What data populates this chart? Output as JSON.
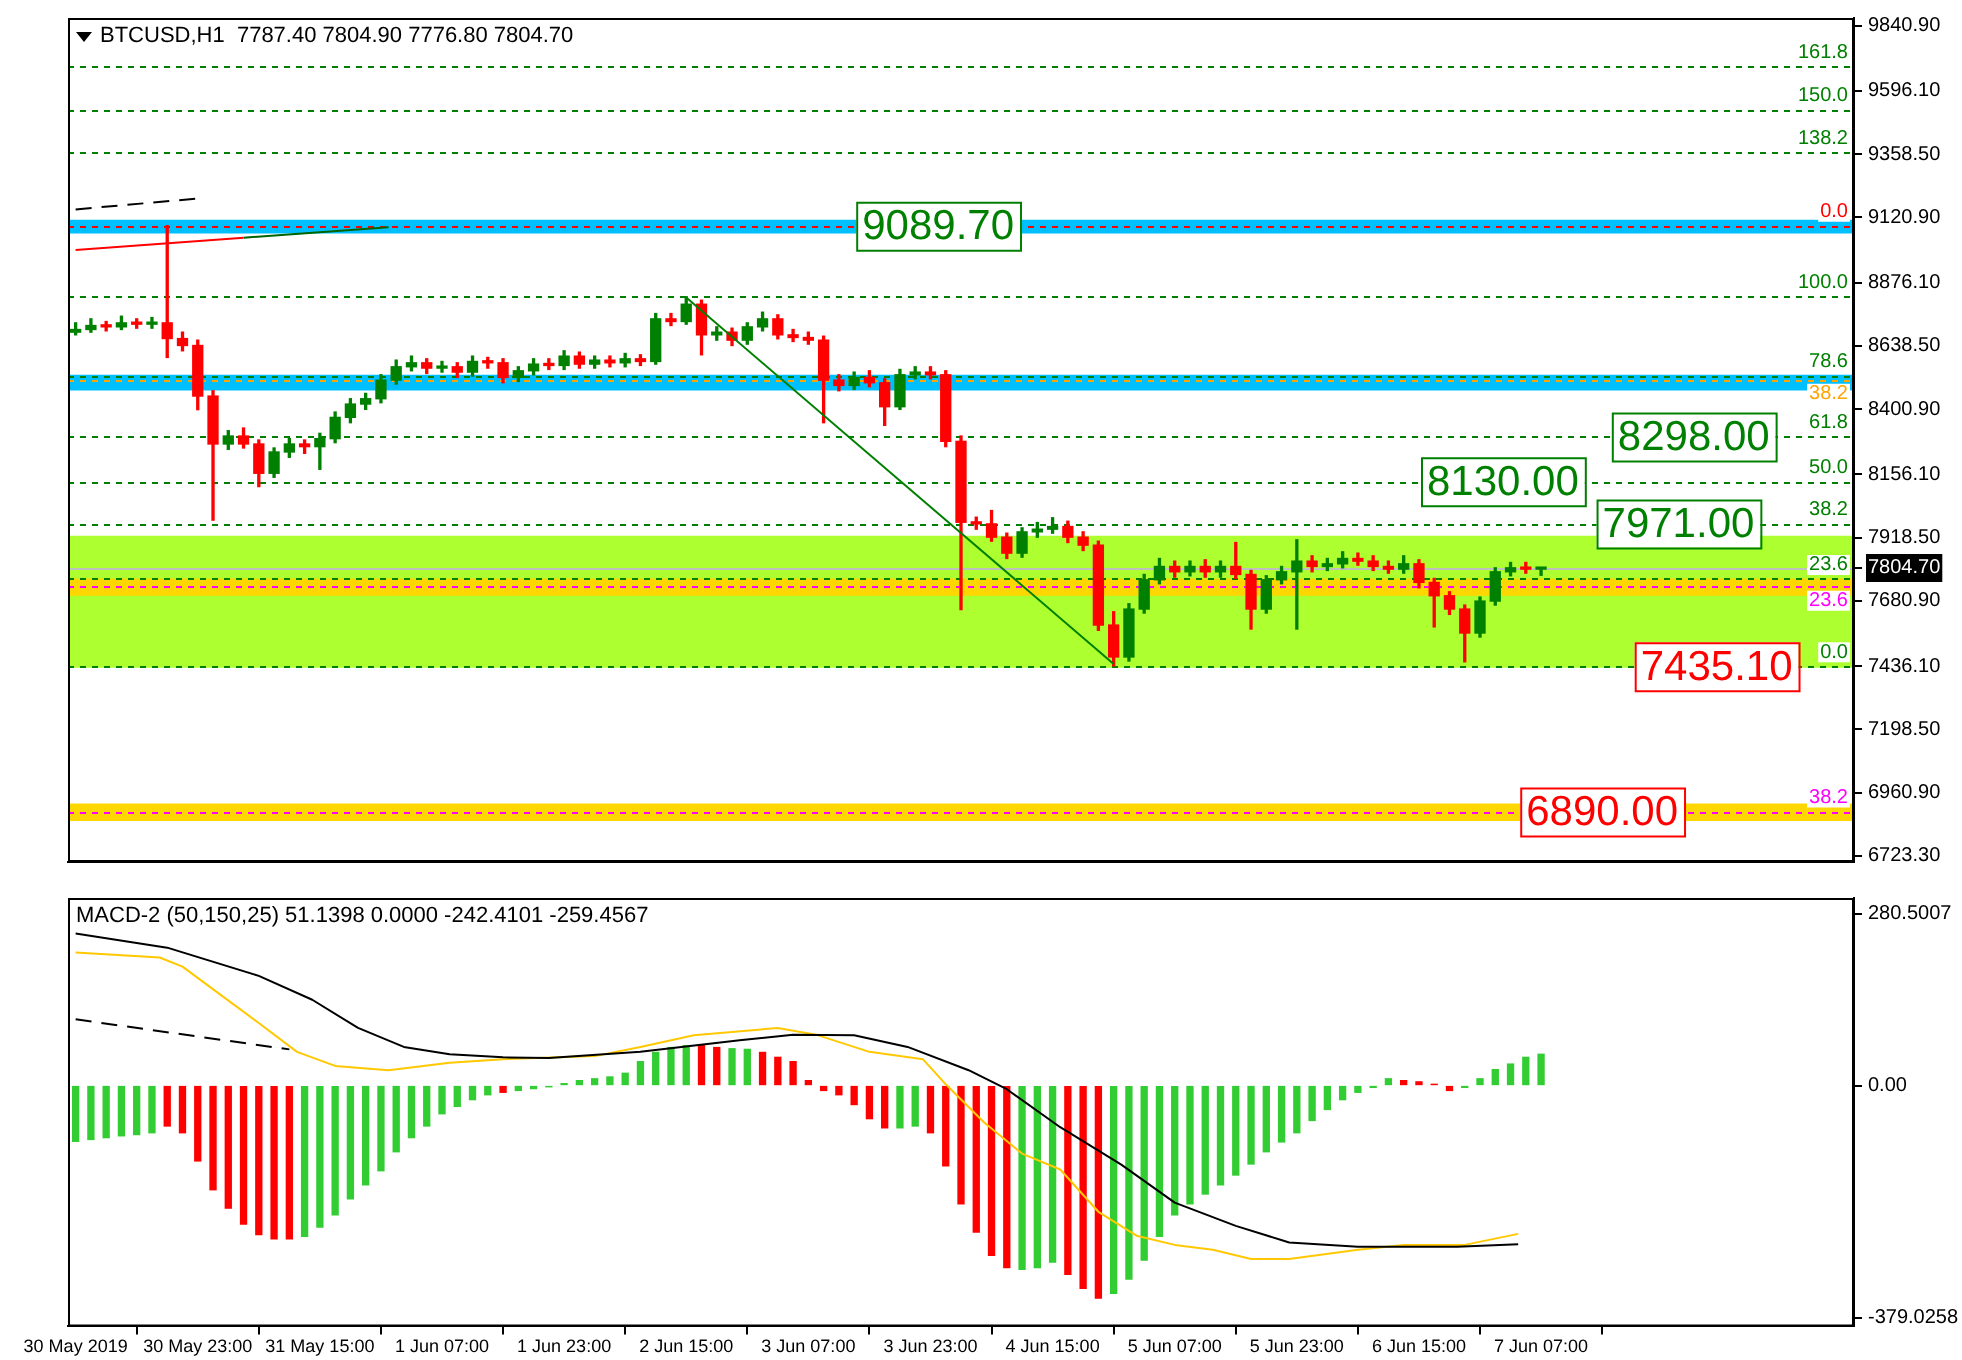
{
  "chart_data": [
    {
      "type": "candlestick",
      "title": "BTCUSD,H1  7787.40 7804.90 7776.80 7804.70",
      "tick_labels": "y",
      "x": [
        "2019-05-30T07:00",
        "2019-05-30T09:00",
        "2019-05-30T11:00",
        "2019-05-30T13:00",
        "2019-05-30T15:00",
        "2019-05-30T17:00",
        "2019-05-30T19:00",
        "2019-05-30T21:00",
        "2019-05-30T23:00",
        "2019-05-31T01:00",
        "2019-05-31T03:00",
        "2019-05-31T05:00",
        "2019-05-31T07:00",
        "2019-05-31T09:00",
        "2019-05-31T11:00",
        "2019-05-31T13:00",
        "2019-05-31T15:00",
        "2019-05-31T17:00",
        "2019-05-31T19:00",
        "2019-05-31T21:00",
        "2019-05-31T23:00",
        "2019-06-01T01:00",
        "2019-06-01T03:00",
        "2019-06-01T05:00",
        "2019-06-01T07:00",
        "2019-06-01T09:00",
        "2019-06-01T11:00",
        "2019-06-01T13:00",
        "2019-06-01T15:00",
        "2019-06-01T17:00",
        "2019-06-01T19:00",
        "2019-06-01T21:00",
        "2019-06-01T23:00",
        "2019-06-02T01:00",
        "2019-06-02T03:00",
        "2019-06-02T05:00",
        "2019-06-02T07:00",
        "2019-06-02T09:00",
        "2019-06-02T11:00",
        "2019-06-02T13:00",
        "2019-06-02T15:00",
        "2019-06-02T17:00",
        "2019-06-02T19:00",
        "2019-06-02T21:00",
        "2019-06-02T23:00",
        "2019-06-03T01:00",
        "2019-06-03T03:00",
        "2019-06-03T05:00",
        "2019-06-03T07:00",
        "2019-06-03T09:00",
        "2019-06-03T11:00",
        "2019-06-03T13:00",
        "2019-06-03T15:00",
        "2019-06-03T17:00",
        "2019-06-03T19:00",
        "2019-06-03T21:00",
        "2019-06-03T23:00",
        "2019-06-04T01:00",
        "2019-06-04T03:00",
        "2019-06-04T05:00",
        "2019-06-04T07:00",
        "2019-06-04T09:00",
        "2019-06-04T11:00",
        "2019-06-04T13:00",
        "2019-06-04T15:00",
        "2019-06-04T17:00",
        "2019-06-04T19:00",
        "2019-06-04T21:00",
        "2019-06-04T23:00",
        "2019-06-05T01:00",
        "2019-06-05T03:00",
        "2019-06-05T05:00",
        "2019-06-05T07:00",
        "2019-06-05T09:00",
        "2019-06-05T11:00",
        "2019-06-05T13:00",
        "2019-06-05T15:00",
        "2019-06-05T17:00",
        "2019-06-05T19:00",
        "2019-06-05T21:00",
        "2019-06-05T23:00",
        "2019-06-06T01:00",
        "2019-06-06T03:00",
        "2019-06-06T05:00",
        "2019-06-06T07:00",
        "2019-06-06T09:00",
        "2019-06-06T11:00",
        "2019-06-06T13:00",
        "2019-06-06T15:00",
        "2019-06-06T17:00",
        "2019-06-06T19:00",
        "2019-06-06T21:00",
        "2019-06-06T23:00",
        "2019-06-07T01:00",
        "2019-06-07T03:00",
        "2019-06-07T05:00",
        "2019-06-07T07:00"
      ],
      "ohlc": [
        [
          8690,
          8725,
          8680,
          8700
        ],
        [
          8700,
          8740,
          8690,
          8715
        ],
        [
          8715,
          8730,
          8695,
          8710
        ],
        [
          8710,
          8750,
          8700,
          8725
        ],
        [
          8725,
          8740,
          8705,
          8720
        ],
        [
          8720,
          8745,
          8705,
          8725
        ],
        [
          8725,
          9090,
          8595,
          8666
        ],
        [
          8666,
          8690,
          8620,
          8640
        ],
        [
          8640,
          8660,
          8399,
          8450
        ],
        [
          8450,
          8470,
          7984,
          8270
        ],
        [
          8270,
          8320,
          8250,
          8300
        ],
        [
          8300,
          8330,
          8255,
          8270
        ],
        [
          8270,
          8285,
          8110,
          8160
        ],
        [
          8160,
          8255,
          8145,
          8240
        ],
        [
          8240,
          8290,
          8220,
          8270
        ],
        [
          8270,
          8285,
          8235,
          8260
        ],
        [
          8260,
          8310,
          8175,
          8290
        ],
        [
          8290,
          8390,
          8275,
          8370
        ],
        [
          8370,
          8440,
          8350,
          8420
        ],
        [
          8420,
          8460,
          8400,
          8440
        ],
        [
          8440,
          8530,
          8425,
          8510
        ],
        [
          8510,
          8585,
          8495,
          8560
        ],
        [
          8560,
          8600,
          8545,
          8575
        ],
        [
          8575,
          8590,
          8535,
          8555
        ],
        [
          8555,
          8580,
          8540,
          8560
        ],
        [
          8560,
          8575,
          8520,
          8540
        ],
        [
          8540,
          8600,
          8525,
          8580
        ],
        [
          8580,
          8595,
          8555,
          8575
        ],
        [
          8575,
          8590,
          8500,
          8520
        ],
        [
          8520,
          8560,
          8505,
          8545
        ],
        [
          8545,
          8590,
          8530,
          8570
        ],
        [
          8570,
          8590,
          8550,
          8565
        ],
        [
          8565,
          8620,
          8550,
          8600
        ],
        [
          8600,
          8615,
          8555,
          8570
        ],
        [
          8570,
          8600,
          8555,
          8585
        ],
        [
          8585,
          8600,
          8560,
          8575
        ],
        [
          8575,
          8610,
          8560,
          8590
        ],
        [
          8590,
          8605,
          8565,
          8580
        ],
        [
          8580,
          8760,
          8570,
          8740
        ],
        [
          8740,
          8760,
          8715,
          8730
        ],
        [
          8730,
          8823,
          8720,
          8795
        ],
        [
          8795,
          8810,
          8605,
          8680
        ],
        [
          8680,
          8710,
          8660,
          8690
        ],
        [
          8690,
          8705,
          8640,
          8660
        ],
        [
          8660,
          8725,
          8645,
          8710
        ],
        [
          8710,
          8765,
          8695,
          8740
        ],
        [
          8740,
          8755,
          8665,
          8680
        ],
        [
          8680,
          8700,
          8655,
          8670
        ],
        [
          8670,
          8690,
          8645,
          8660
        ],
        [
          8660,
          8675,
          8350,
          8510
        ],
        [
          8510,
          8530,
          8470,
          8490
        ],
        [
          8490,
          8540,
          8475,
          8520
        ],
        [
          8520,
          8545,
          8485,
          8500
        ],
        [
          8500,
          8515,
          8340,
          8410
        ],
        [
          8410,
          8550,
          8400,
          8530
        ],
        [
          8530,
          8560,
          8515,
          8540
        ],
        [
          8540,
          8560,
          8515,
          8530
        ],
        [
          8530,
          8545,
          8260,
          8280
        ],
        [
          8280,
          8300,
          7648,
          7976
        ],
        [
          7976,
          7995,
          7950,
          7970
        ],
        [
          7970,
          8020,
          7905,
          7920
        ],
        [
          7920,
          7935,
          7840,
          7860
        ],
        [
          7860,
          7955,
          7845,
          7940
        ],
        [
          7940,
          7975,
          7920,
          7950
        ],
        [
          7950,
          7993,
          7935,
          7960
        ],
        [
          7960,
          7980,
          7900,
          7920
        ],
        [
          7920,
          7940,
          7870,
          7890
        ],
        [
          7890,
          7905,
          7570,
          7590
        ],
        [
          7590,
          7640,
          7437,
          7470
        ],
        [
          7470,
          7670,
          7455,
          7650
        ],
        [
          7650,
          7780,
          7635,
          7760
        ],
        [
          7760,
          7840,
          7745,
          7810
        ],
        [
          7810,
          7830,
          7770,
          7790
        ],
        [
          7790,
          7830,
          7775,
          7810
        ],
        [
          7810,
          7835,
          7770,
          7790
        ],
        [
          7790,
          7830,
          7770,
          7810
        ],
        [
          7810,
          7900,
          7765,
          7780
        ],
        [
          7780,
          7795,
          7575,
          7650
        ],
        [
          7650,
          7775,
          7635,
          7760
        ],
        [
          7760,
          7810,
          7745,
          7790
        ],
        [
          7790,
          7910,
          7575,
          7830
        ],
        [
          7830,
          7850,
          7790,
          7810
        ],
        [
          7810,
          7840,
          7795,
          7820
        ],
        [
          7820,
          7865,
          7805,
          7840
        ],
        [
          7840,
          7860,
          7815,
          7830
        ],
        [
          7830,
          7850,
          7795,
          7810
        ],
        [
          7810,
          7830,
          7785,
          7800
        ],
        [
          7800,
          7850,
          7785,
          7820
        ],
        [
          7820,
          7835,
          7730,
          7750
        ],
        [
          7750,
          7765,
          7583,
          7700
        ],
        [
          7700,
          7715,
          7630,
          7650
        ],
        [
          7650,
          7665,
          7452,
          7560
        ],
        [
          7560,
          7695,
          7545,
          7680
        ],
        [
          7680,
          7805,
          7665,
          7790
        ],
        [
          7790,
          7825,
          7775,
          7805
        ],
        [
          7805,
          7825,
          7785,
          7800
        ],
        [
          7800,
          7805,
          7777,
          7804.7
        ]
      ],
      "series": [
        {
          "type": "line",
          "color": "#ff0000",
          "x": [
            "2019-05-30T07:00",
            "2019-05-31T05:00"
          ],
          "values": [
            8999,
            9045
          ]
        },
        {
          "type": "line",
          "color": "#006400",
          "x": [
            "2019-05-31T05:00",
            "2019-06-01T00:00"
          ],
          "values": [
            9045,
            9084
          ]
        },
        {
          "type": "line",
          "color": "#000000",
          "line_style": "dashed",
          "x": [
            "2019-05-30T07:00",
            "2019-05-30T23:00"
          ],
          "values": [
            9151,
            9192
          ]
        },
        {
          "type": "line",
          "color": "#008000",
          "x": [
            "2019-06-02T15:00",
            "2019-06-04T23:00"
          ],
          "values": [
            8820,
            7444
          ]
        }
      ],
      "xlim": [
        "2019-05-30T06:00",
        "2019-06-09T00:00"
      ],
      "ylim": [
        6700,
        9870
      ],
      "yticks": [
        {
          "value": 9840.9,
          "label": "9840.90"
        },
        {
          "value": 9596.1,
          "label": "9596.10"
        },
        {
          "value": 9358.5,
          "label": "9358.50"
        },
        {
          "value": 9120.9,
          "label": "9120.90"
        },
        {
          "value": 8876.1,
          "label": "8876.10"
        },
        {
          "value": 8638.5,
          "label": "8638.50"
        },
        {
          "value": 8400.9,
          "label": "8400.90"
        },
        {
          "value": 8156.1,
          "label": "8156.10"
        },
        {
          "value": 7918.5,
          "label": "7918.50"
        },
        {
          "value": 7804.7,
          "label": "7804.70"
        },
        {
          "value": 7680.9,
          "label": "7680.90"
        },
        {
          "value": 7436.1,
          "label": "7436.10"
        },
        {
          "value": 7198.5,
          "label": "7198.50"
        },
        {
          "value": 6960.9,
          "label": "6960.90"
        },
        {
          "value": 6723.3,
          "label": "6723.30"
        }
      ],
      "bands": [
        {
          "axis": "y",
          "from": 7430,
          "to": 7925,
          "color": "#adff2f"
        },
        {
          "axis": "y",
          "from": 9061,
          "to": 9112,
          "color": "#00bfff"
        },
        {
          "axis": "y",
          "from": 8471,
          "to": 8530,
          "color": "#00bfff"
        },
        {
          "axis": "y",
          "from": 7700,
          "to": 7765,
          "color": "#ffd700"
        },
        {
          "axis": "y",
          "from": 6854,
          "to": 6920,
          "color": "#ffd700"
        }
      ],
      "ref_lines": [
        {
          "axis": "y",
          "value": 7804.7,
          "color": "#c0c0c0"
        },
        {
          "axis": "y",
          "value": 9688,
          "color": "#008000",
          "line_style": "dashed"
        },
        {
          "axis": "y",
          "value": 9525,
          "color": "#008000",
          "line_style": "dashed"
        },
        {
          "axis": "y",
          "value": 9365,
          "color": "#008000",
          "line_style": "dashed"
        },
        {
          "axis": "y",
          "value": 8825,
          "color": "#008000",
          "line_style": "dashed"
        },
        {
          "axis": "y",
          "value": 8527,
          "color": "#008000",
          "line_style": "dashed"
        },
        {
          "axis": "y",
          "value": 8298,
          "color": "#008000",
          "line_style": "dashed"
        },
        {
          "axis": "y",
          "value": 8130,
          "color": "#008000",
          "line_style": "dashed"
        },
        {
          "axis": "y",
          "value": 7971,
          "color": "#008000",
          "line_style": "dashed"
        },
        {
          "axis": "y",
          "value": 7763,
          "color": "#008000",
          "line_style": "dashed"
        },
        {
          "axis": "y",
          "value": 7435.1,
          "color": "#008000",
          "line_style": "dashed"
        },
        {
          "axis": "y",
          "value": 9089.7,
          "color": "#ff0000",
          "line_style": "dashed"
        },
        {
          "axis": "y",
          "value": 8511,
          "color": "#ffa500",
          "line_style": "dashed"
        },
        {
          "axis": "y",
          "value": 7734,
          "color": "#ff00ff",
          "line_style": "dashed"
        },
        {
          "axis": "y",
          "value": 6890,
          "color": "#ff00ff",
          "line_style": "dashed"
        }
      ],
      "annotations": [
        {
          "text": "161.8",
          "x": "2019-06-09T00:00",
          "y": 9688
        },
        {
          "text": "150.0",
          "x": "2019-06-09T00:00",
          "y": 9525
        },
        {
          "text": "138.2",
          "x": "2019-06-09T00:00",
          "y": 9365
        },
        {
          "text": "100.0",
          "x": "2019-06-09T00:00",
          "y": 8825
        },
        {
          "text": "78.6",
          "x": "2019-06-09T00:00",
          "y": 8527
        },
        {
          "text": "61.8",
          "x": "2019-06-09T00:00",
          "y": 8298
        },
        {
          "text": "50.0",
          "x": "2019-06-09T00:00",
          "y": 8130
        },
        {
          "text": "38.2",
          "x": "2019-06-09T00:00",
          "y": 7971
        },
        {
          "text": "23.6",
          "x": "2019-06-09T00:00",
          "y": 7763
        },
        {
          "text": "0.0",
          "x": "2019-06-09T00:00",
          "y": 7435.1
        },
        {
          "text": "0.0",
          "x": "2019-06-09T00:00",
          "y": 9089.7
        },
        {
          "text": "38.2",
          "x": "2019-06-09T00:00",
          "y": 8511
        },
        {
          "text": "23.6",
          "x": "2019-06-09T00:00",
          "y": 7734
        },
        {
          "text": "38.2",
          "x": "2019-06-09T00:00",
          "y": 6890
        },
        {
          "text": "9089.70",
          "x": "2019-06-04T00:00",
          "y": 9089.7
        },
        {
          "text": "8298.00",
          "x": "2019-06-08T03:00",
          "y": 8298
        },
        {
          "text": "8130.00",
          "x": "2019-06-07T02:00",
          "y": 8130
        },
        {
          "text": "7971.00",
          "x": "2019-06-08T01:00",
          "y": 7971
        },
        {
          "text": "7435.10",
          "x": "2019-06-08T06:00",
          "y": 7435.1
        },
        {
          "text": "6890.00",
          "x": "2019-06-07T15:00",
          "y": 6890
        }
      ]
    },
    {
      "type": "bar",
      "title": "MACD-2 (50,150,25) 51.1398 0.0000 -242.4101 -259.4567",
      "x": [
        "2019-05-30T07:00",
        "2019-05-30T09:00",
        "2019-05-30T11:00",
        "2019-05-30T13:00",
        "2019-05-30T15:00",
        "2019-05-30T17:00",
        "2019-05-30T19:00",
        "2019-05-30T21:00",
        "2019-05-30T23:00",
        "2019-05-31T01:00",
        "2019-05-31T03:00",
        "2019-05-31T05:00",
        "2019-05-31T07:00",
        "2019-05-31T09:00",
        "2019-05-31T11:00",
        "2019-05-31T13:00",
        "2019-05-31T15:00",
        "2019-05-31T17:00",
        "2019-05-31T19:00",
        "2019-05-31T21:00",
        "2019-05-31T23:00",
        "2019-06-01T01:00",
        "2019-06-01T03:00",
        "2019-06-01T05:00",
        "2019-06-01T07:00",
        "2019-06-01T09:00",
        "2019-06-01T11:00",
        "2019-06-01T13:00",
        "2019-06-01T15:00",
        "2019-06-01T17:00",
        "2019-06-01T19:00",
        "2019-06-01T21:00",
        "2019-06-01T23:00",
        "2019-06-02T01:00",
        "2019-06-02T03:00",
        "2019-06-02T05:00",
        "2019-06-02T07:00",
        "2019-06-02T09:00",
        "2019-06-02T11:00",
        "2019-06-02T13:00",
        "2019-06-02T15:00",
        "2019-06-02T17:00",
        "2019-06-02T19:00",
        "2019-06-02T21:00",
        "2019-06-02T23:00",
        "2019-06-03T01:00",
        "2019-06-03T03:00",
        "2019-06-03T05:00",
        "2019-06-03T07:00",
        "2019-06-03T09:00",
        "2019-06-03T11:00",
        "2019-06-03T13:00",
        "2019-06-03T15:00",
        "2019-06-03T17:00",
        "2019-06-03T19:00",
        "2019-06-03T21:00",
        "2019-06-03T23:00",
        "2019-06-04T01:00",
        "2019-06-04T03:00",
        "2019-06-04T05:00",
        "2019-06-04T07:00",
        "2019-06-04T09:00",
        "2019-06-04T11:00",
        "2019-06-04T13:00",
        "2019-06-04T15:00",
        "2019-06-04T17:00",
        "2019-06-04T19:00",
        "2019-06-04T21:00",
        "2019-06-04T23:00",
        "2019-06-05T01:00",
        "2019-06-05T03:00",
        "2019-06-05T05:00",
        "2019-06-05T07:00",
        "2019-06-05T09:00",
        "2019-06-05T11:00",
        "2019-06-05T13:00",
        "2019-06-05T15:00",
        "2019-06-05T17:00",
        "2019-06-05T19:00",
        "2019-06-05T21:00",
        "2019-06-05T23:00",
        "2019-06-06T01:00",
        "2019-06-06T03:00",
        "2019-06-06T05:00",
        "2019-06-06T07:00",
        "2019-06-06T09:00",
        "2019-06-06T11:00",
        "2019-06-06T13:00",
        "2019-06-06T15:00",
        "2019-06-06T17:00",
        "2019-06-06T19:00",
        "2019-06-06T21:00",
        "2019-06-06T23:00",
        "2019-06-07T01:00",
        "2019-06-07T03:00",
        "2019-06-07T05:00",
        "2019-06-07T07:00"
      ],
      "series": [
        {
          "values": [
            -91,
            -88,
            -85,
            -82,
            -80,
            -77,
            -66,
            -77,
            -123,
            -170,
            -200,
            -226,
            -243,
            -250,
            -250,
            -246,
            -231,
            -211,
            -185,
            -162,
            -139,
            -108,
            -85,
            -66,
            -46,
            -34,
            -23,
            -15,
            -11,
            -8,
            -5,
            -2,
            3,
            8,
            11,
            14,
            20,
            39,
            54,
            62,
            65,
            65,
            62,
            60,
            59,
            54,
            46,
            39,
            8,
            -8,
            -15,
            -31,
            -54,
            -69,
            -69,
            -66,
            -77,
            -131,
            -193,
            -239,
            -277,
            -297,
            -300,
            -297,
            -288,
            -308,
            -331,
            -347,
            -339,
            -316,
            -285,
            -246,
            -211,
            -193,
            -177,
            -162,
            -146,
            -128,
            -108,
            -92,
            -77,
            -57,
            -39,
            -23,
            -11,
            -3,
            11,
            8,
            6,
            2,
            -8,
            -3,
            11,
            26,
            35,
            46,
            51
          ],
          "colors": [
            "#32cd32",
            "#32cd32",
            "#32cd32",
            "#32cd32",
            "#32cd32",
            "#32cd32",
            "#ff0000",
            "#ff0000",
            "#ff0000",
            "#ff0000",
            "#ff0000",
            "#ff0000",
            "#ff0000",
            "#ff0000",
            "#ff0000",
            "#32cd32",
            "#32cd32",
            "#32cd32",
            "#32cd32",
            "#32cd32",
            "#32cd32",
            "#32cd32",
            "#32cd32",
            "#32cd32",
            "#32cd32",
            "#32cd32",
            "#32cd32",
            "#32cd32",
            "#ff0000",
            "#32cd32",
            "#32cd32",
            "#32cd32",
            "#32cd32",
            "#32cd32",
            "#32cd32",
            "#32cd32",
            "#32cd32",
            "#32cd32",
            "#32cd32",
            "#32cd32",
            "#32cd32",
            "#ff0000",
            "#ff0000",
            "#32cd32",
            "#32cd32",
            "#ff0000",
            "#ff0000",
            "#ff0000",
            "#ff0000",
            "#ff0000",
            "#ff0000",
            "#ff0000",
            "#ff0000",
            "#ff0000",
            "#32cd32",
            "#32cd32",
            "#ff0000",
            "#ff0000",
            "#ff0000",
            "#ff0000",
            "#ff0000",
            "#ff0000",
            "#32cd32",
            "#32cd32",
            "#32cd32",
            "#ff0000",
            "#ff0000",
            "#ff0000",
            "#32cd32",
            "#32cd32",
            "#32cd32",
            "#32cd32",
            "#32cd32",
            "#32cd32",
            "#32cd32",
            "#32cd32",
            "#32cd32",
            "#32cd32",
            "#32cd32",
            "#32cd32",
            "#32cd32",
            "#32cd32",
            "#32cd32",
            "#32cd32",
            "#32cd32",
            "#32cd32",
            "#32cd32",
            "#ff0000",
            "#ff0000",
            "#ff0000",
            "#ff0000",
            "#32cd32",
            "#32cd32",
            "#32cd32",
            "#32cd32",
            "#32cd32",
            "#32cd32"
          ]
        },
        {
          "type": "line",
          "color": "#000000",
          "x": [
            "2019-05-30T07:00",
            "2019-05-30T19:00",
            "2019-05-31T07:00",
            "2019-05-31T14:00",
            "2019-05-31T20:00",
            "2019-06-01T02:00",
            "2019-06-01T08:00",
            "2019-06-01T15:00",
            "2019-06-01T21:00",
            "2019-06-02T09:00",
            "2019-06-02T22:00",
            "2019-06-03T05:00",
            "2019-06-03T13:00",
            "2019-06-03T20:00",
            "2019-06-04T04:00",
            "2019-06-04T09:00",
            "2019-06-04T16:00",
            "2019-06-05T00:00",
            "2019-06-05T07:00",
            "2019-06-05T15:00",
            "2019-06-05T22:00",
            "2019-06-06T07:00",
            "2019-06-06T20:00",
            "2019-06-07T04:00"
          ],
          "values": [
            248,
            225,
            179,
            140,
            94,
            63,
            51,
            46,
            45,
            55,
            74,
            83,
            82,
            63,
            25,
            -6,
            -68,
            -129,
            -191,
            -229,
            -256,
            -263,
            -263,
            -259
          ]
        },
        {
          "type": "line",
          "color": "#ffc800",
          "x": [
            "2019-05-30T07:00",
            "2019-05-30T18:00",
            "2019-05-30T21:00",
            "2019-05-31T02:00",
            "2019-05-31T07:00",
            "2019-05-31T12:00",
            "2019-05-31T17:00",
            "2019-06-01T00:00",
            "2019-06-01T08:00",
            "2019-06-01T15:00",
            "2019-06-02T03:00",
            "2019-06-02T09:00",
            "2019-06-02T16:00",
            "2019-06-03T03:00",
            "2019-06-03T08:00",
            "2019-06-03T15:00",
            "2019-06-03T22:00",
            "2019-06-04T01:00",
            "2019-06-04T06:00",
            "2019-06-04T11:00",
            "2019-06-04T16:00",
            "2019-06-04T21:00",
            "2019-06-05T02:00",
            "2019-06-05T07:00",
            "2019-06-05T12:00",
            "2019-06-05T17:00",
            "2019-06-05T22:00",
            "2019-06-06T07:00",
            "2019-06-06T13:00",
            "2019-06-06T21:00",
            "2019-06-07T04:00"
          ],
          "values": [
            217,
            209,
            194,
            148,
            102,
            55,
            32,
            25,
            37,
            43,
            48,
            63,
            82,
            94,
            83,
            55,
            43,
            2,
            -60,
            -111,
            -137,
            -206,
            -245,
            -260,
            -268,
            -283,
            -283,
            -268,
            -260,
            -260,
            -242
          ]
        },
        {
          "type": "line",
          "color": "#000000",
          "line_style": "dashed",
          "x": [
            "2019-05-30T07:00",
            "2019-05-31T11:00"
          ],
          "values": [
            108,
            59
          ]
        }
      ],
      "xlim": [
        "2019-05-30T06:00",
        "2019-06-09T00:00"
      ],
      "xticks": [
        {
          "value": "2019-05-30T07:00",
          "label": "30 May 2019"
        },
        {
          "value": "2019-05-30T23:00",
          "label": "30 May 23:00"
        },
        {
          "value": "2019-05-31T15:00",
          "label": "31 May 15:00"
        },
        {
          "value": "2019-06-01T07:00",
          "label": "1 Jun 07:00"
        },
        {
          "value": "2019-06-01T23:00",
          "label": "1 Jun 23:00"
        },
        {
          "value": "2019-06-02T15:00",
          "label": "2 Jun 15:00"
        },
        {
          "value": "2019-06-03T07:00",
          "label": "3 Jun 07:00"
        },
        {
          "value": "2019-06-03T23:00",
          "label": "3 Jun 23:00"
        },
        {
          "value": "2019-06-04T15:00",
          "label": "4 Jun 15:00"
        },
        {
          "value": "2019-06-05T07:00",
          "label": "5 Jun 07:00"
        },
        {
          "value": "2019-06-05T23:00",
          "label": "5 Jun 23:00"
        },
        {
          "value": "2019-06-06T15:00",
          "label": "6 Jun 15:00"
        },
        {
          "value": "2019-06-07T07:00",
          "label": "7 Jun 07:00"
        }
      ],
      "ylim": [
        -393,
        306
      ],
      "yticks": [
        {
          "value": 280.5007,
          "label": "280.5007"
        },
        {
          "value": 0,
          "label": "0.00"
        },
        {
          "value": -379.0258,
          "label": "-379.0258"
        }
      ]
    }
  ]
}
